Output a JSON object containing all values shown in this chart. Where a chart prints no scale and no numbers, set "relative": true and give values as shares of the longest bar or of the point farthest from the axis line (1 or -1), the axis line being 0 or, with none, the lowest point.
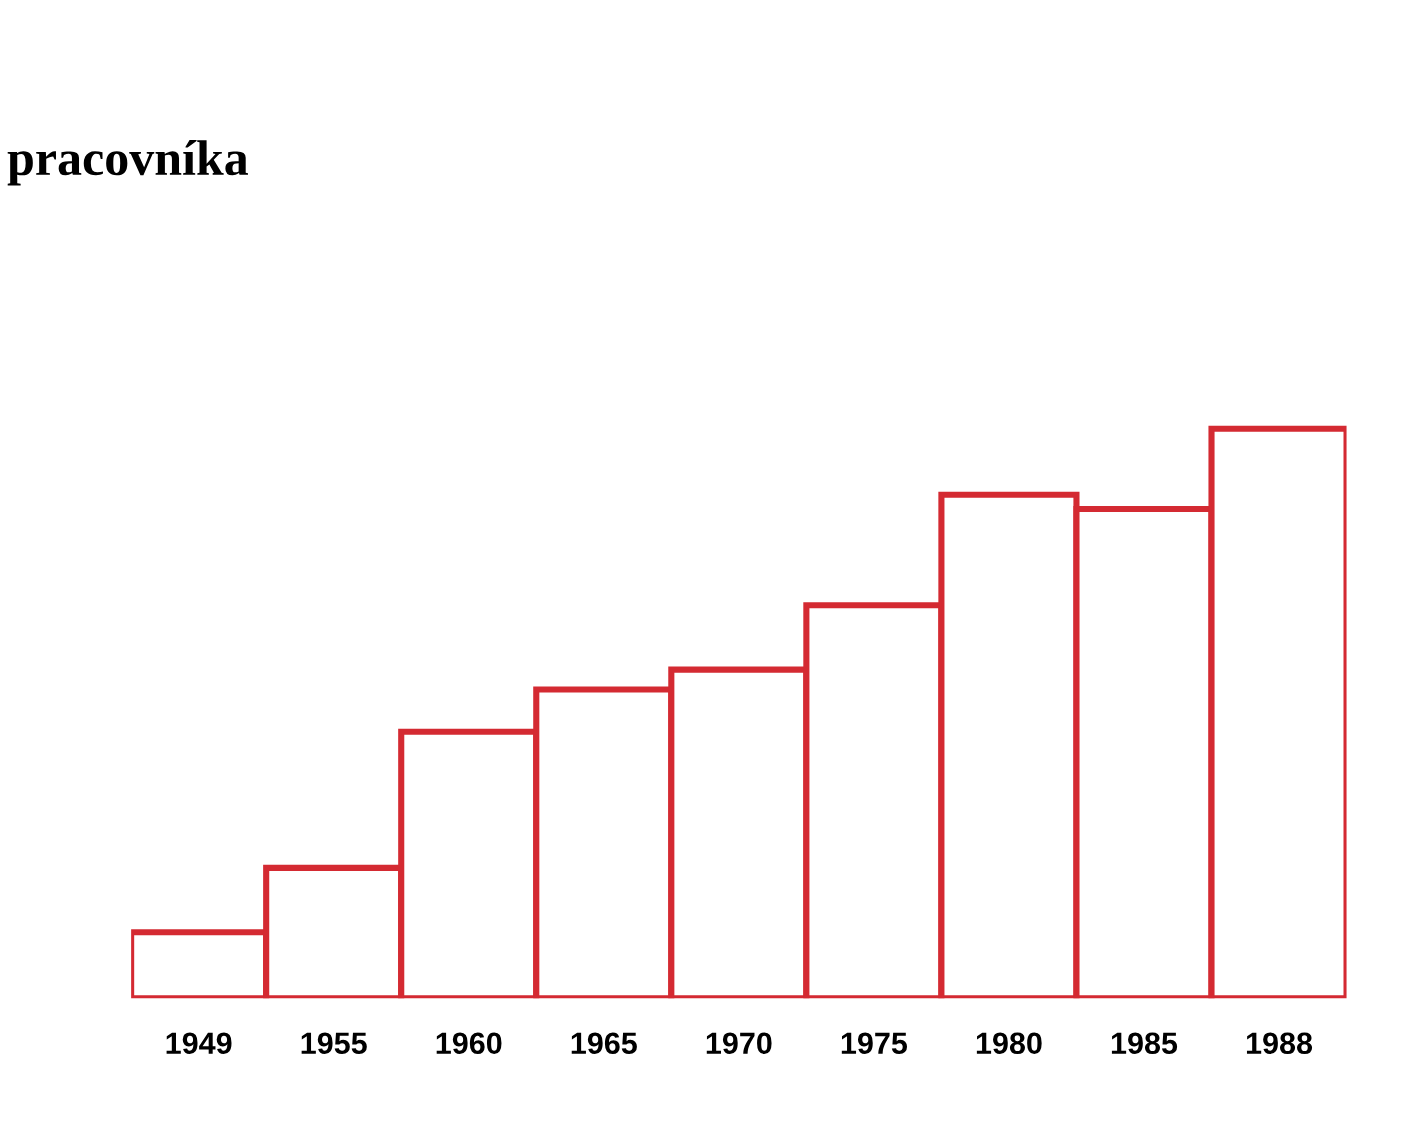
{
  "chart_data": {
    "type": "bar",
    "title": "pracovníka",
    "relative": true,
    "categories": [
      "1949",
      "1955",
      "1960",
      "1965",
      "1970",
      "1975",
      "1980",
      "1985",
      "1988"
    ],
    "values": [
      0.116,
      0.229,
      0.468,
      0.542,
      0.577,
      0.69,
      0.884,
      0.859,
      1.0
    ],
    "color": "#d42a32"
  }
}
